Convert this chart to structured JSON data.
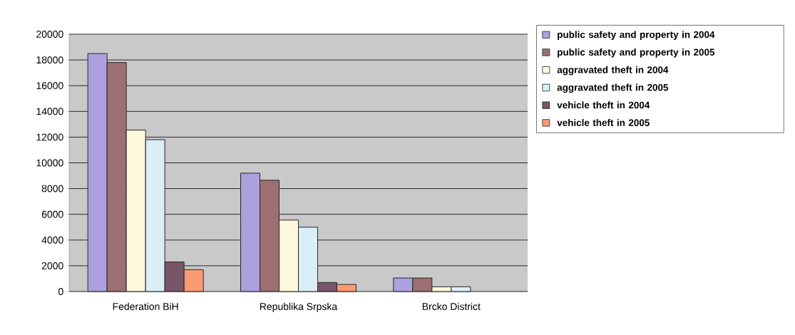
{
  "chart_data": {
    "type": "bar",
    "categories": [
      "Federation BiH",
      "Republika Srpska",
      "Brcko District"
    ],
    "series": [
      {
        "name": "public safety and property in 2004",
        "color": "#ada0de",
        "values": [
          18500,
          9200,
          1050
        ]
      },
      {
        "name": "public safety and property in 2005",
        "color": "#9c7073",
        "values": [
          17800,
          8650,
          1050
        ]
      },
      {
        "name": "aggravated theft in 2004",
        "color": "#fff8dc",
        "values": [
          12550,
          5550,
          370
        ]
      },
      {
        "name": "aggravated theft in 2005",
        "color": "#daeef8",
        "values": [
          11800,
          5000,
          370
        ]
      },
      {
        "name": "vehicle theft in 2004",
        "color": "#785568",
        "values": [
          2300,
          700,
          null
        ]
      },
      {
        "name": "vehicle theft in 2005",
        "color": "#f99a74",
        "values": [
          1700,
          550,
          null
        ]
      }
    ],
    "ylim": [
      0,
      20000
    ],
    "yticks": [
      0,
      2000,
      4000,
      6000,
      8000,
      10000,
      12000,
      14000,
      16000,
      18000,
      20000
    ],
    "grid": "y",
    "legend": "right"
  }
}
